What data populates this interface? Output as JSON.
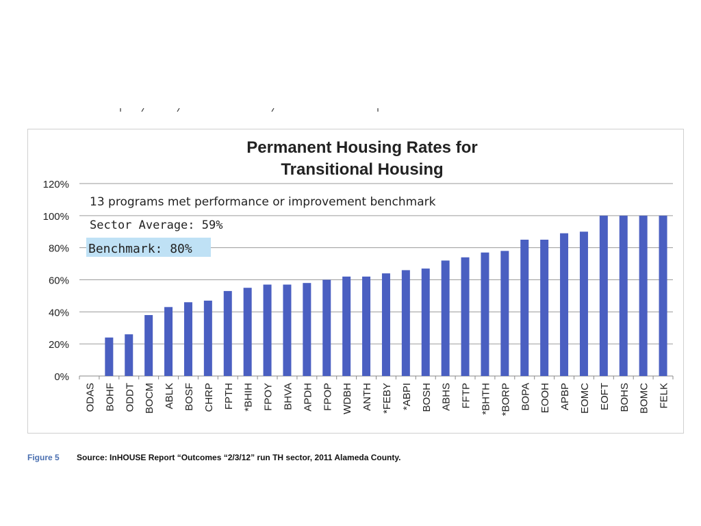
{
  "figure": {
    "label": "Figure 5",
    "source": "Source: InHOUSE Report “Outcomes “2/3/12” run TH sector, 2011 Alameda County."
  },
  "chart_data": {
    "type": "bar",
    "title_line1": "Permanent Housing Rates for",
    "title_line2": "Transitional Housing",
    "annotations": {
      "programs_met": "13 programs met performance or improvement benchmark",
      "sector_average": "Sector Average: 59%",
      "benchmark": "Benchmark: 80%"
    },
    "ylim": [
      0,
      120
    ],
    "yticks": [
      0,
      20,
      40,
      60,
      80,
      100,
      120
    ],
    "ytick_labels": [
      "0%",
      "20%",
      "40%",
      "60%",
      "80%",
      "100%",
      "120%"
    ],
    "grid": true,
    "series_color": "#4a5fc1",
    "categories": [
      "ODAS",
      "BOHF",
      "ODDT",
      "BOCM",
      "ABLK",
      "BOSF",
      "CHRP",
      "FPTH",
      "*BHIH",
      "FPOY",
      "BHVA",
      "APDH",
      "FPOP",
      "WDBH",
      "ANTH",
      "*FEBY",
      "*ABPI",
      "BOSH",
      "ABHS",
      "FFTP",
      "*BHTH",
      "*BORP",
      "BOPA",
      "EOOH",
      "APBP",
      "EOMC",
      "EOFT",
      "BOHS",
      "BOMC",
      "FELK"
    ],
    "values": [
      0,
      24,
      26,
      38,
      43,
      46,
      47,
      53,
      55,
      57,
      57,
      58,
      60,
      62,
      62,
      64,
      66,
      67,
      72,
      74,
      77,
      78,
      85,
      85,
      89,
      90,
      100,
      100,
      100,
      100
    ]
  }
}
